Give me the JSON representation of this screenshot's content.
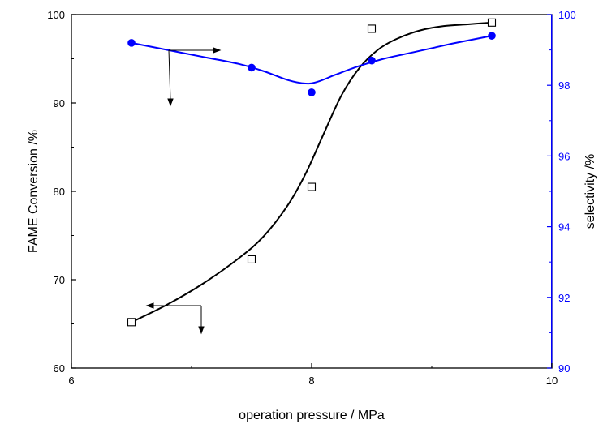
{
  "chart_data": {
    "type": "scatter",
    "xlabel": "operation pressure / MPa",
    "ylabel_left": "FAME Conversion /%",
    "ylabel_right": "selectivity  /%",
    "xlim": [
      6,
      10
    ],
    "ylim_left": [
      60,
      100
    ],
    "ylim_right": [
      90,
      100
    ],
    "xticks": [
      "6",
      "8",
      "10"
    ],
    "yticks_left": [
      "60",
      "70",
      "80",
      "90",
      "100"
    ],
    "yticks_right": [
      "90",
      "92",
      "94",
      "96",
      "98",
      "100"
    ],
    "grid": false,
    "series": [
      {
        "key": "conversion",
        "axis": "left",
        "marker": "open-square",
        "color": "#000000",
        "x": [
          6.5,
          7.5,
          8.0,
          8.5,
          9.5
        ],
        "y": [
          65.2,
          72.3,
          80.5,
          98.4,
          99.1
        ],
        "fit_curve": {
          "x": [
            6.5,
            6.8,
            7.1,
            7.4,
            7.6,
            7.8,
            7.95,
            8.1,
            8.25,
            8.4,
            8.55,
            8.7,
            8.9,
            9.1,
            9.3,
            9.5
          ],
          "y": [
            65.2,
            67.2,
            69.6,
            72.5,
            74.9,
            78.4,
            82.0,
            86.5,
            90.9,
            94.0,
            96.0,
            97.2,
            98.2,
            98.7,
            98.9,
            99.1
          ]
        }
      },
      {
        "key": "selectivity",
        "axis": "right",
        "marker": "filled-circle",
        "color": "#0000ff",
        "x": [
          6.5,
          7.5,
          8.0,
          8.5,
          9.5
        ],
        "y": [
          99.2,
          98.5,
          97.8,
          98.7,
          99.4
        ],
        "fit_curve": {
          "x": [
            6.5,
            6.8,
            7.1,
            7.4,
            7.6,
            7.8,
            7.95,
            8.05,
            8.2,
            8.4,
            8.6,
            8.8,
            9.0,
            9.2,
            9.5
          ],
          "y": [
            99.2,
            99.0,
            98.8,
            98.6,
            98.4,
            98.15,
            98.05,
            98.1,
            98.3,
            98.55,
            98.75,
            98.9,
            99.05,
            99.2,
            99.4
          ]
        }
      }
    ]
  }
}
